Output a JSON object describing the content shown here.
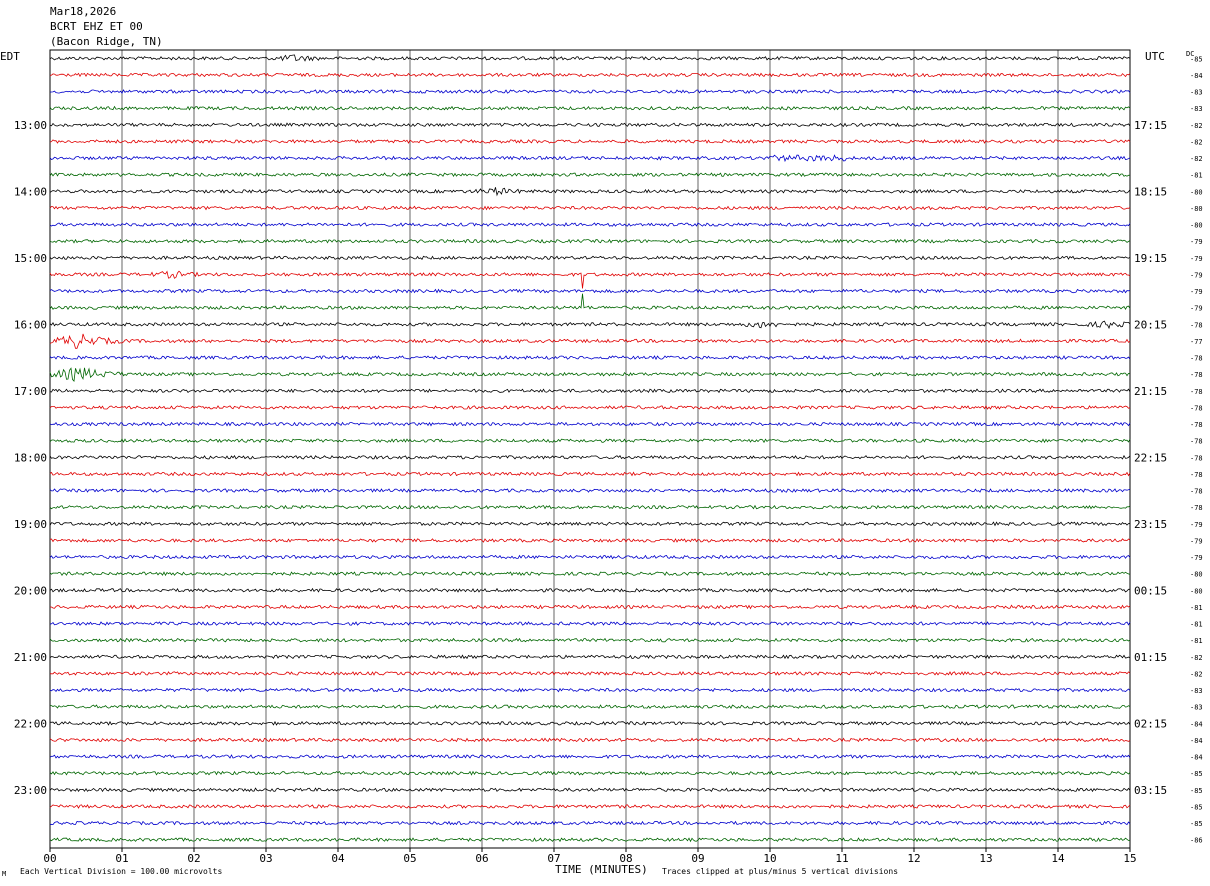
{
  "header": {
    "date": "Mar18,2026",
    "station": "BCRT EHZ ET 00",
    "location": "(Bacon Ridge, TN)"
  },
  "left_tz": "EDT",
  "right_tz": "UTC",
  "dc_label": "DC",
  "footer": {
    "left_mark": "M",
    "division_note": "Each Vertical Division =  100.00 microvolts",
    "xlabel": "TIME (MINUTES)",
    "clip_note": "Traces clipped at plus/minus 5 vertical divisions"
  },
  "chart_data": {
    "type": "line",
    "title": "BCRT EHZ ET 00",
    "xlabel": "TIME (MINUTES)",
    "xlim": [
      0,
      15
    ],
    "x_ticks": [
      "00",
      "01",
      "02",
      "03",
      "04",
      "05",
      "06",
      "07",
      "08",
      "09",
      "10",
      "11",
      "12",
      "13",
      "14",
      "15"
    ],
    "rows_per_hour": 4,
    "trace_colors": [
      "#000000",
      "#e00000",
      "#0000cc",
      "#006600"
    ],
    "grid": "vertical lines at each minute",
    "left_hour_labels": [
      "13:00",
      "14:00",
      "15:00",
      "16:00",
      "17:00",
      "18:00",
      "19:00",
      "20:00",
      "21:00",
      "22:00",
      "23:00"
    ],
    "right_hour_labels": [
      "17:15",
      "18:15",
      "19:15",
      "20:15",
      "21:15",
      "22:15",
      "23:15",
      "00:15",
      "01:15",
      "02:15",
      "03:15"
    ],
    "dc_offsets": [
      "-85",
      "-84",
      "-83",
      "-83",
      "-82",
      "-82",
      "-82",
      "-81",
      "-80",
      "-80",
      "-80",
      "-79",
      "-79",
      "-79",
      "-79",
      "-79",
      "-78",
      "-77",
      "-78",
      "-78",
      "-78",
      "-78",
      "-78",
      "-78",
      "-78",
      "-78",
      "-78",
      "-78",
      "-79",
      "-79",
      "-79",
      "-80",
      "-80",
      "-81",
      "-81",
      "-81",
      "-82",
      "-82",
      "-83",
      "-83",
      "-84",
      "-84",
      "-84",
      "-85",
      "-85",
      "-85",
      "-85",
      "-86"
    ],
    "events": [
      {
        "row": 0,
        "minute": 3.4,
        "note": "burst"
      },
      {
        "row": 6,
        "minute": 10.5,
        "note": "noise"
      },
      {
        "row": 8,
        "minute": 6.2,
        "note": "burst"
      },
      {
        "row": 13,
        "minute": 1.7,
        "note": "burst"
      },
      {
        "row": 13,
        "minute": 7.4,
        "note": "spike"
      },
      {
        "row": 15,
        "minute": 7.4,
        "note": "spike"
      },
      {
        "row": 16,
        "minute": 9.9,
        "note": "burst"
      },
      {
        "row": 16,
        "minute": 14.7,
        "note": "burst"
      },
      {
        "row": 17,
        "minute": 0.4,
        "note": "earthquake"
      },
      {
        "row": 19,
        "minute": 0.4,
        "note": "earthquake"
      }
    ]
  }
}
